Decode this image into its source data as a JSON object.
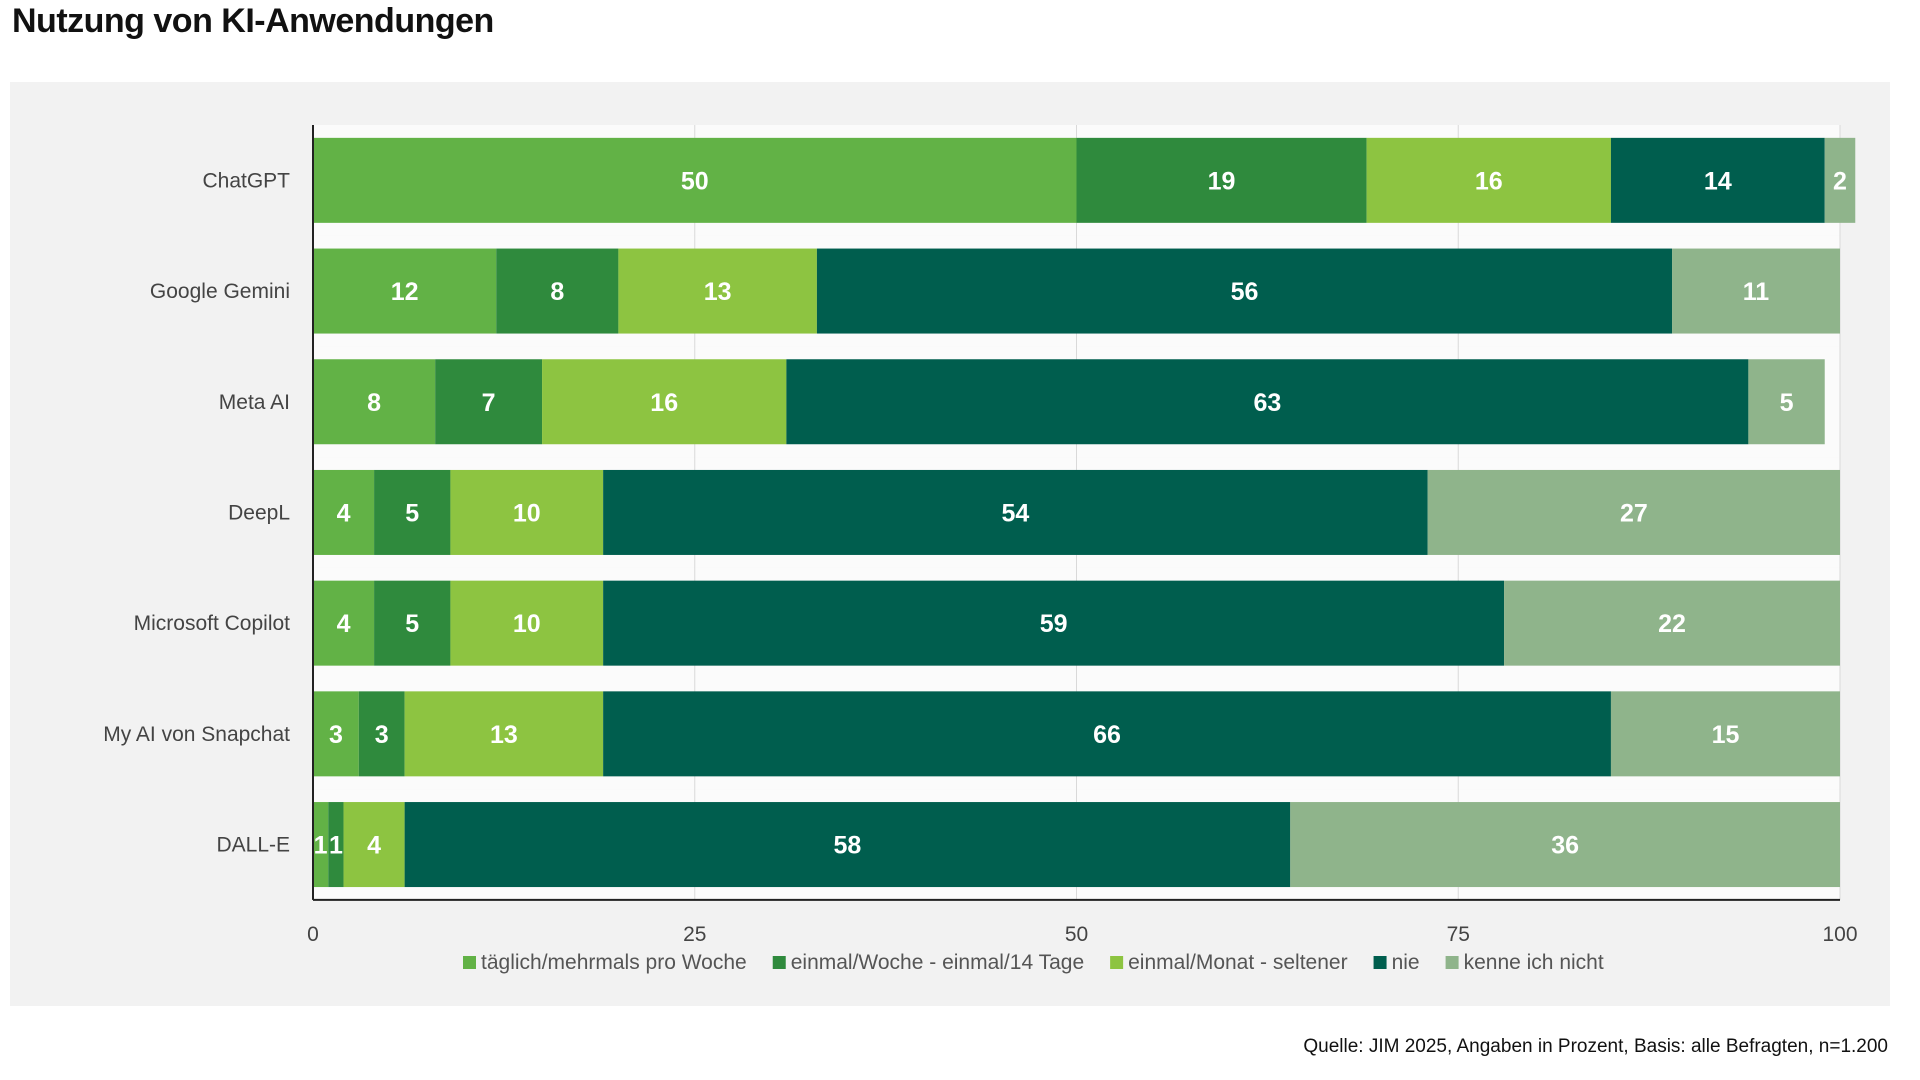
{
  "title": "Nutzung von KI-Anwendungen",
  "source": "Quelle: JIM 2025, Angaben in Prozent, Basis: alle Befragten, n=1.200",
  "chart_data": {
    "type": "bar",
    "orientation": "horizontal",
    "stacked": true,
    "title": "Nutzung von KI-Anwendungen",
    "categories": [
      "ChatGPT",
      "Google Gemini",
      "Meta AI",
      "DeepL",
      "Microsoft Copilot",
      "My AI von Snapchat",
      "DALL-E"
    ],
    "series": [
      {
        "name": "täglich/mehrmals pro Woche",
        "color": "#62b246",
        "values": [
          50,
          12,
          8,
          4,
          4,
          3,
          1
        ]
      },
      {
        "name": "einmal/Woche - einmal/14 Tage",
        "color": "#2f8a3d",
        "values": [
          19,
          8,
          7,
          5,
          5,
          3,
          1
        ]
      },
      {
        "name": "einmal/Monat - seltener",
        "color": "#8dc441",
        "values": [
          16,
          13,
          16,
          10,
          10,
          13,
          4
        ]
      },
      {
        "name": "nie",
        "color": "#005e4e",
        "values": [
          14,
          56,
          63,
          54,
          59,
          66,
          58
        ]
      },
      {
        "name": "kenne ich nicht",
        "color": "#8fb48b",
        "values": [
          2,
          11,
          5,
          27,
          22,
          15,
          36
        ]
      }
    ],
    "xlim": [
      0,
      100
    ],
    "xticks": [
      "0",
      "25",
      "50",
      "75",
      "100"
    ],
    "grid": true,
    "legend": "bottom",
    "data_labels": true
  }
}
